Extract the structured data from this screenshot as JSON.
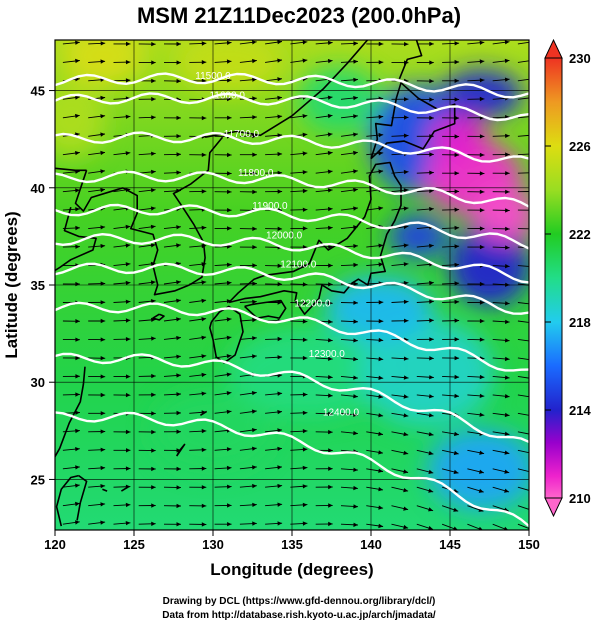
{
  "title": "MSM 21Z11Dec2023 (200.0hPa)",
  "xlabel": "Longitude (degrees)",
  "ylabel": "Latitude  (degrees)",
  "footer": {
    "line1": "Drawing by DCL (https://www.gfd-dennou.org/library/dcl/)",
    "line2": "Data from http://database.rish.kyoto-u.ac.jp/arch/jmadata/"
  },
  "chart_data": {
    "type": "heatmap",
    "x_ticks": [
      "120",
      "125",
      "130",
      "135",
      "140",
      "145",
      "150"
    ],
    "y_ticks": [
      "25",
      "30",
      "35",
      "40",
      "45"
    ],
    "xlim": [
      120,
      150
    ],
    "ylim": [
      22.4,
      47.6
    ],
    "colorbar": {
      "ticks": [
        "230",
        "226",
        "222",
        "218",
        "214",
        "210"
      ],
      "range": [
        210,
        230
      ],
      "stops": [
        {
          "v": 210,
          "c": "#ff66cc"
        },
        {
          "v": 211,
          "c": "#ee22cc"
        },
        {
          "v": 212.5,
          "c": "#9900cc"
        },
        {
          "v": 214,
          "c": "#2222cc"
        },
        {
          "v": 216,
          "c": "#1a6bff"
        },
        {
          "v": 218,
          "c": "#22ccee"
        },
        {
          "v": 220,
          "c": "#22dd88"
        },
        {
          "v": 222,
          "c": "#22cc22"
        },
        {
          "v": 224,
          "c": "#99dd22"
        },
        {
          "v": 226,
          "c": "#dddd11"
        },
        {
          "v": 228,
          "c": "#ee9922"
        },
        {
          "v": 230,
          "c": "#ee3322"
        }
      ]
    },
    "contours": [
      {
        "label": "11500.0",
        "lat": 45.5
      },
      {
        "label": "11600.0",
        "lat": 44.5
      },
      {
        "label": "11700.0",
        "lat": 42.5
      },
      {
        "label": "11800.0",
        "lat": 40.5
      },
      {
        "label": "11900.0",
        "lat": 38.8
      },
      {
        "label": "12000.0",
        "lat": 37.3
      },
      {
        "label": "12100.0",
        "lat": 35.8
      },
      {
        "label": "12200.0",
        "lat": 33.8
      },
      {
        "label": "12300.0",
        "lat": 31.2
      },
      {
        "label": "12400.0",
        "lat": 28.2
      }
    ]
  }
}
